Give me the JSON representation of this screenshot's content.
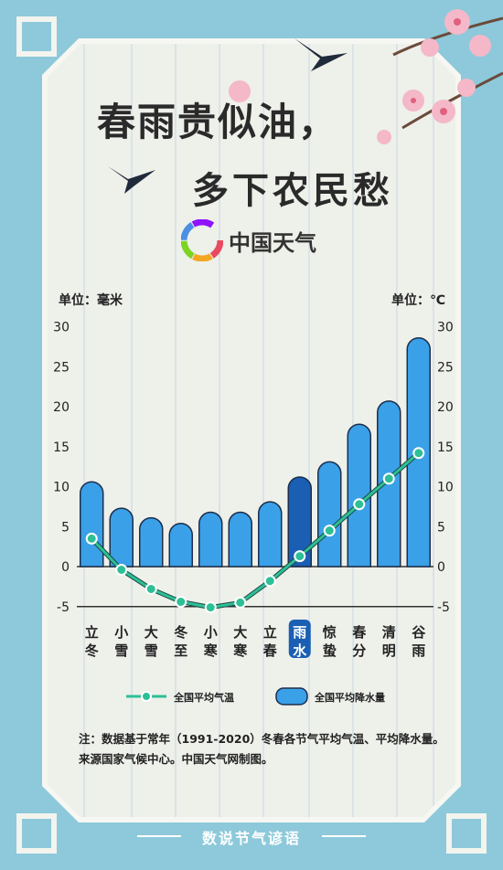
{
  "header": {
    "title_line1": "春雨贵似油，",
    "title_line2": "多下农民愁",
    "brand": "中国天气"
  },
  "colors": {
    "frame": "#8dc9da",
    "panel": "#eef0ea",
    "bar": "#3aa0e8",
    "bar_highlight": "#1a5fb4",
    "temp_line": "#2dbf96"
  },
  "chart_data": {
    "type": "bar+line",
    "categories": [
      "立冬",
      "小雪",
      "大雪",
      "冬至",
      "小寒",
      "大寒",
      "立春",
      "雨水",
      "惊蛰",
      "春分",
      "清明",
      "谷雨"
    ],
    "highlight_category": "雨水",
    "left_axis": {
      "unit_label": "单位：毫米",
      "ylim": [
        -5,
        30
      ],
      "ticks": [
        -5,
        0,
        5,
        10,
        15,
        20,
        25,
        30
      ]
    },
    "right_axis": {
      "unit_label": "单位：℃",
      "ylim": [
        -5,
        30
      ],
      "ticks": [
        -5,
        0,
        5,
        10,
        15,
        20,
        25,
        30
      ]
    },
    "series": [
      {
        "name": "全国平均降水量",
        "type": "bar",
        "axis": "left",
        "values": [
          10.6,
          7.3,
          6.1,
          5.4,
          6.8,
          6.8,
          8.1,
          11.2,
          13.1,
          17.8,
          20.7,
          28.6
        ]
      },
      {
        "name": "全国平均气温",
        "type": "line",
        "axis": "right",
        "values": [
          3.5,
          -0.4,
          -2.8,
          -4.4,
          -5.1,
          -4.5,
          -1.8,
          1.3,
          4.5,
          7.8,
          11.0,
          14.2
        ]
      }
    ],
    "legend": {
      "position": "bottom",
      "line_label": "全国平均气温",
      "bar_label": "全国平均降水量"
    }
  },
  "note": "注：数据基于常年（1991-2020）冬春各节气平均气温、平均降水量。来源国家气候中心。中国天气网制图。",
  "footer": "数说节气谚语"
}
